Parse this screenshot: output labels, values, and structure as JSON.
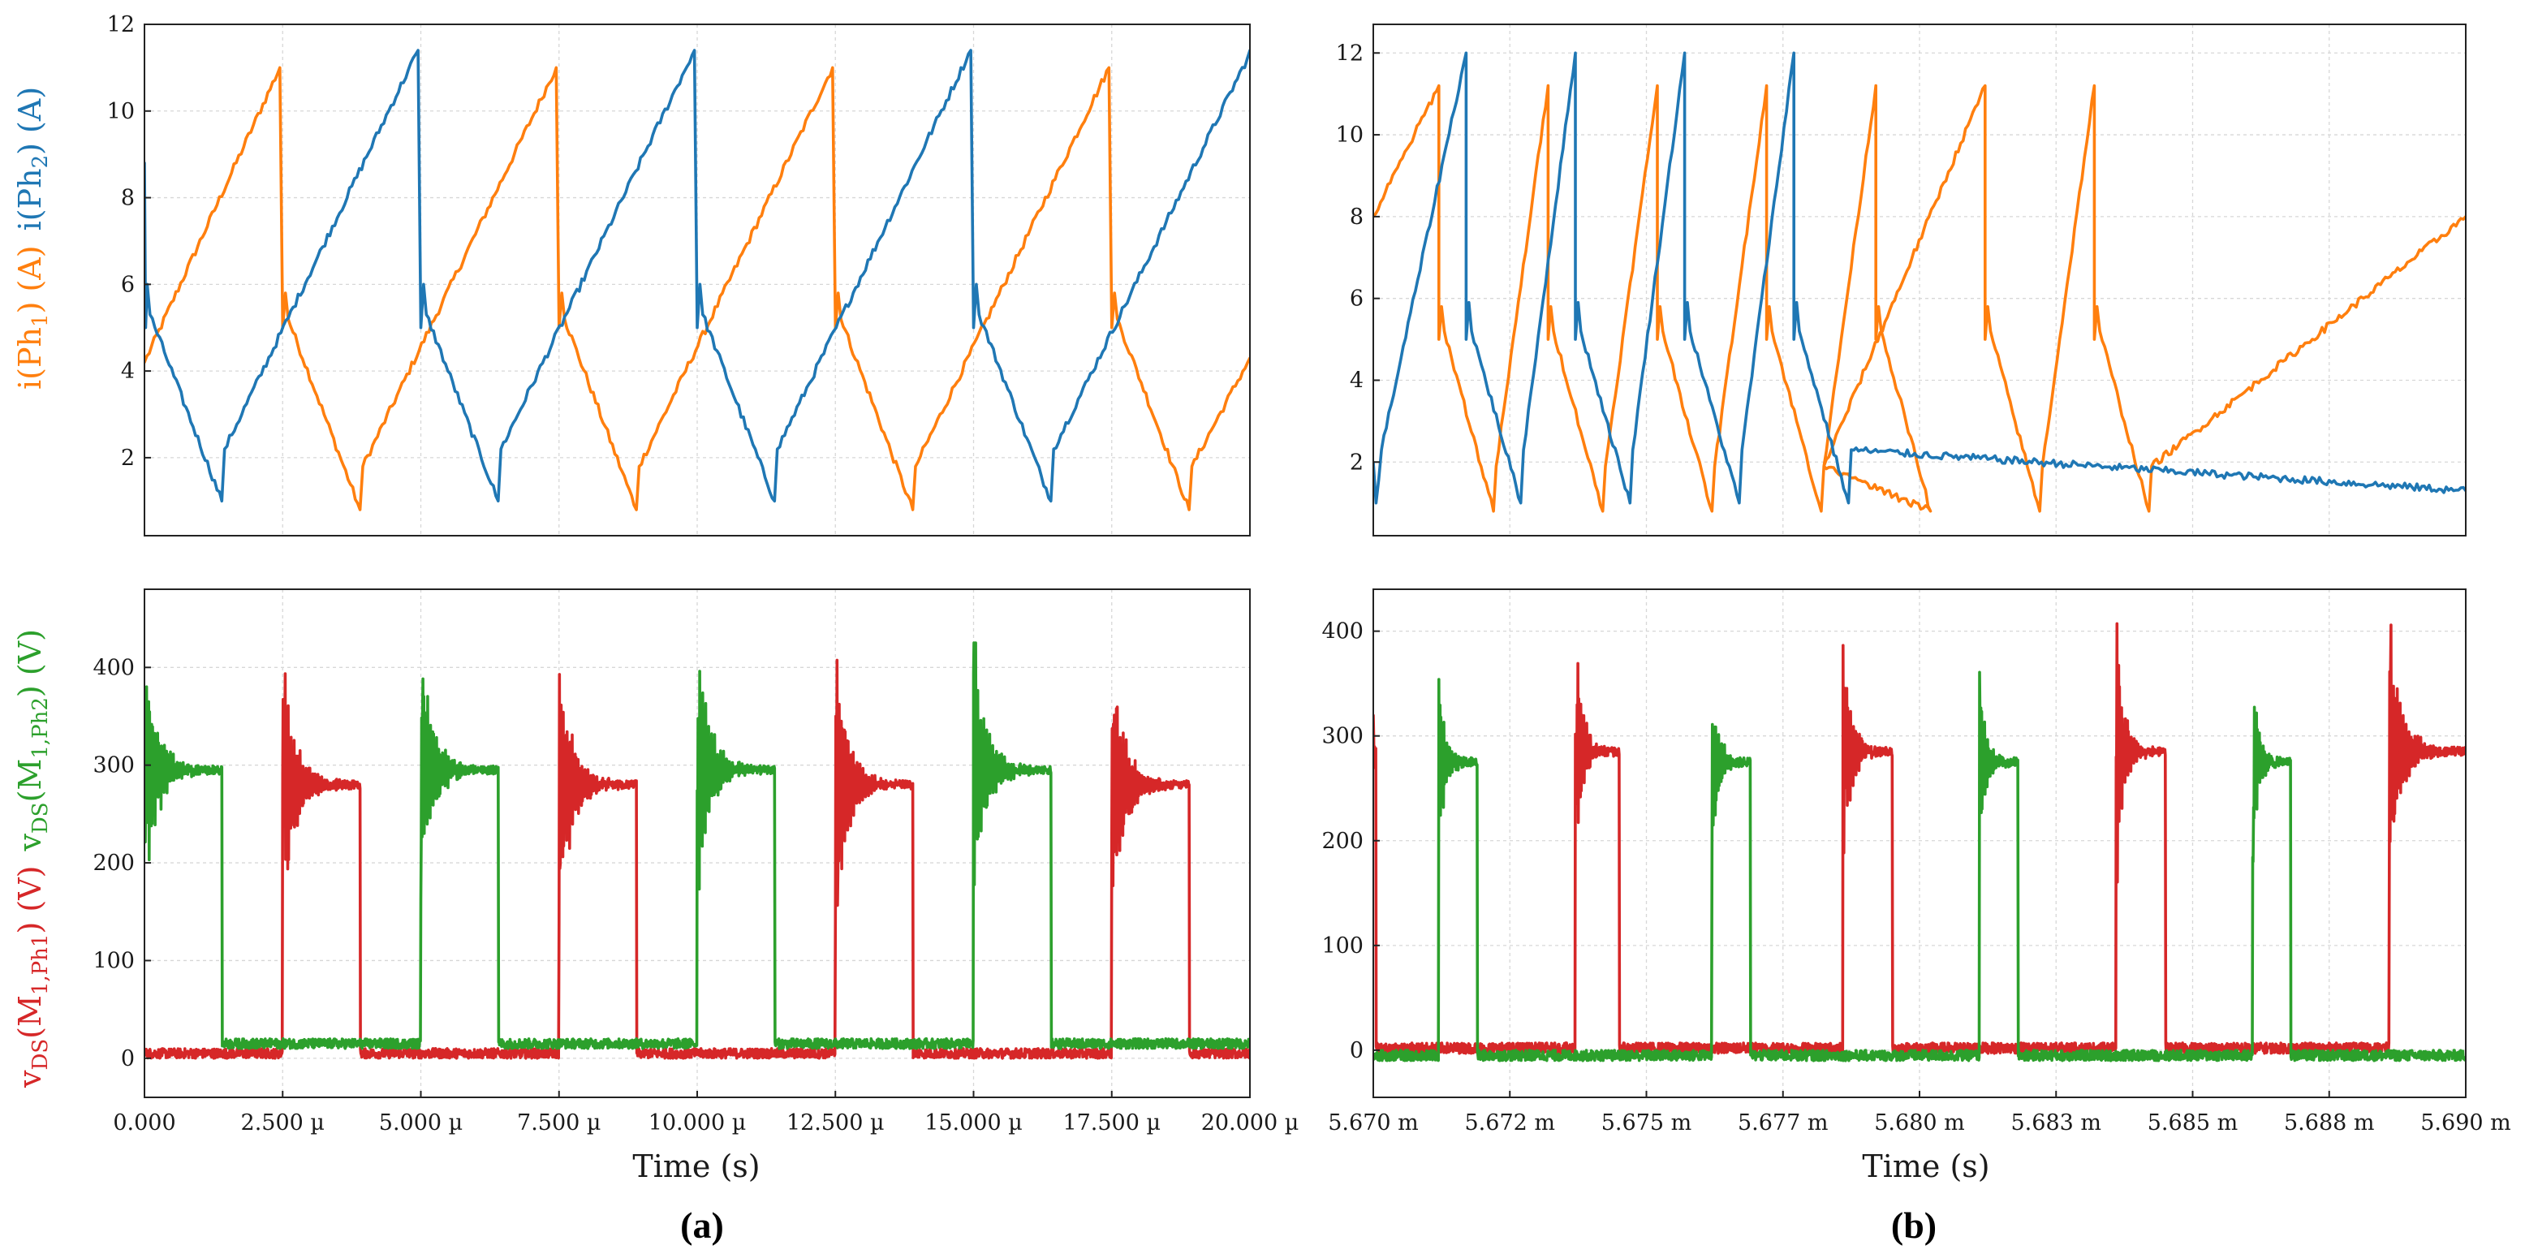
{
  "colors": {
    "orange": "#ff7f0e",
    "blue": "#1f77b4",
    "red": "#d62728",
    "green": "#2ca02c"
  },
  "labels": {
    "panel_a": "(a)",
    "panel_b": "(b)",
    "xlabel": "Time (s)",
    "ylabel_currents_ph1_pre": "i(Ph",
    "ylabel_currents_ph1_sub": "1",
    "ylabel_currents_ph1_post": ") (A)",
    "ylabel_currents_ph2_pre": "i(Ph",
    "ylabel_currents_ph2_sub": "2",
    "ylabel_currents_ph2_post": ") (A)",
    "ylabel_volt_red_pre": "v",
    "ylabel_volt_red_sub1": "DS",
    "ylabel_volt_red_mid": "(M",
    "ylabel_volt_red_sub2": "1,Ph1",
    "ylabel_volt_red_post": ") (V)",
    "ylabel_volt_green_pre": "v",
    "ylabel_volt_green_sub1": "DS",
    "ylabel_volt_green_mid": "(M",
    "ylabel_volt_green_sub2": "1,Ph2",
    "ylabel_volt_green_post": ") (V)"
  },
  "chart_data": [
    {
      "id": "a_current",
      "type": "line",
      "panel": "(a)",
      "xlim": [
        0,
        20
      ],
      "ylim": [
        0.2,
        12
      ],
      "yticks": [
        2,
        4,
        6,
        8,
        10,
        12
      ],
      "ytick_labels": [
        "2",
        "4",
        "6",
        "8",
        "10",
        "12"
      ],
      "xlabel": "",
      "ylabel": "i(Ph1) (A)  i(Ph2) (A)",
      "series": [
        {
          "name": "i(Ph1)",
          "color": "#ff7f0e",
          "x": [
            0,
            2.45,
            2.5,
            2.55,
            2.6,
            3.9,
            3.95,
            7.45,
            7.5,
            7.55,
            7.6,
            8.9,
            8.95,
            12.45,
            12.5,
            12.55,
            12.6,
            13.9,
            13.95,
            17.45,
            17.5,
            17.55,
            17.6,
            18.9,
            18.95,
            20
          ],
          "y": [
            4.2,
            11.0,
            5.0,
            5.8,
            5.2,
            0.8,
            1.8,
            11.0,
            5.0,
            5.8,
            5.2,
            0.8,
            1.8,
            11.0,
            5.0,
            5.8,
            5.2,
            0.8,
            1.8,
            11.0,
            5.0,
            5.8,
            5.2,
            0.8,
            1.8,
            4.3
          ]
        },
        {
          "name": "i(Ph2)",
          "color": "#1f77b4",
          "x": [
            0,
            0.02,
            0.05,
            0.1,
            1.4,
            1.45,
            4.95,
            5.0,
            5.05,
            5.1,
            6.4,
            6.45,
            9.95,
            10.0,
            10.05,
            10.1,
            11.4,
            11.45,
            14.95,
            15.0,
            15.05,
            15.1,
            16.4,
            16.45,
            19.95,
            20.0
          ],
          "y": [
            8.8,
            5.0,
            6.0,
            5.3,
            1.0,
            2.2,
            11.4,
            5.0,
            6.0,
            5.3,
            1.0,
            2.2,
            11.4,
            5.0,
            6.0,
            5.3,
            1.0,
            2.2,
            11.4,
            5.0,
            6.0,
            5.3,
            1.0,
            2.2,
            11.2,
            11.4
          ]
        }
      ]
    },
    {
      "id": "a_voltage",
      "type": "line",
      "panel": "(a)",
      "xlim": [
        0,
        20
      ],
      "ylim": [
        -40,
        480
      ],
      "yticks": [
        0,
        100,
        200,
        300,
        400
      ],
      "ytick_labels": [
        "0",
        "100",
        "200",
        "300",
        "400"
      ],
      "xticks": [
        0,
        2.5,
        5,
        7.5,
        10,
        12.5,
        15,
        17.5,
        20
      ],
      "xtick_labels": [
        "0.000",
        "2.500 µ",
        "5.000 µ",
        "7.500 µ",
        "10.000 µ",
        "12.500 µ",
        "15.000 µ",
        "17.500 µ",
        "20.000 µ"
      ],
      "xlabel": "Time (s)",
      "ylabel": "vDS(M1,Ph1) (V)  vDS(M1,Ph2) (V)",
      "series": [
        {
          "name": "vDS(M1,Ph1)",
          "color": "#d62728",
          "off_value": 5,
          "plateau": 280,
          "overshoot": 425,
          "on_intervals": [
            [
              2.5,
              3.9
            ],
            [
              7.5,
              8.9
            ],
            [
              12.5,
              13.9
            ],
            [
              17.5,
              18.9
            ]
          ]
        },
        {
          "name": "vDS(M1,Ph2)",
          "color": "#2ca02c",
          "off_value": 15,
          "plateau": 295,
          "overshoot": 430,
          "on_intervals": [
            [
              0.0,
              1.4
            ],
            [
              5.0,
              6.4
            ],
            [
              10.0,
              11.4
            ],
            [
              15.0,
              16.4
            ],
            [
              20.0,
              20.0
            ]
          ]
        }
      ]
    },
    {
      "id": "b_current",
      "type": "line",
      "panel": "(b)",
      "xlim": [
        5.67,
        5.69
      ],
      "ylim": [
        0.2,
        12.7
      ],
      "yticks": [
        2,
        4,
        6,
        8,
        10,
        12
      ],
      "ytick_labels": [
        "2",
        "4",
        "6",
        "8",
        "10",
        "12"
      ],
      "xlabel": "",
      "ylabel": "",
      "series": [
        {
          "name": "i(Ph1)",
          "color": "#ff7f0e",
          "x": [
            5.67,
            5.6712,
            5.6712,
            5.67125,
            5.6713,
            5.6722,
            5.67225,
            5.6732,
            5.6732,
            5.67325,
            5.6733,
            5.6742,
            5.67425,
            5.6752,
            5.6752,
            5.67525,
            5.6753,
            5.6762,
            5.67625,
            5.6772,
            5.6772,
            5.67725,
            5.6773,
            5.6782,
            5.67825,
            5.6792,
            5.6792,
            5.67925,
            5.6793,
            5.6802,
            5.67825,
            5.6812,
            5.6812,
            5.68125,
            5.6813,
            5.6822,
            5.68225,
            5.6832,
            5.6832,
            5.68325,
            5.6833,
            5.6842,
            5.68425,
            5.69
          ],
          "y": [
            8.0,
            11.2,
            5.0,
            5.8,
            5.2,
            0.8,
            1.9,
            11.2,
            5.0,
            5.8,
            5.2,
            0.8,
            1.9,
            11.2,
            5.0,
            5.8,
            5.2,
            0.8,
            1.9,
            11.2,
            5.0,
            5.8,
            5.2,
            0.8,
            1.9,
            11.2,
            5.0,
            5.8,
            5.2,
            0.8,
            1.9,
            11.2,
            5.0,
            5.8,
            5.2,
            0.8,
            1.9,
            11.2,
            5.0,
            5.8,
            5.2,
            0.8,
            1.9,
            8.0
          ]
        },
        {
          "name": "i(Ph2)",
          "color": "#1f77b4",
          "x": [
            5.67,
            5.67005,
            5.67015,
            5.6717,
            5.6717,
            5.67175,
            5.6718,
            5.6727,
            5.67275,
            5.6737,
            5.6737,
            5.67375,
            5.6738,
            5.6747,
            5.67475,
            5.6757,
            5.6757,
            5.67575,
            5.6758,
            5.6767,
            5.67675,
            5.6777,
            5.6777,
            5.67775,
            5.6778,
            5.6787,
            5.67875,
            5.69
          ],
          "y": [
            2.0,
            1.0,
            2.3,
            12.0,
            5.0,
            5.9,
            5.2,
            1.0,
            2.3,
            12.0,
            5.0,
            5.9,
            5.2,
            1.0,
            2.3,
            12.0,
            5.0,
            5.9,
            5.2,
            1.0,
            2.3,
            12.0,
            5.0,
            5.9,
            5.2,
            1.0,
            2.3,
            1.3
          ]
        }
      ]
    },
    {
      "id": "b_voltage",
      "type": "line",
      "panel": "(b)",
      "xlim": [
        5.67,
        5.69
      ],
      "ylim": [
        -45,
        440
      ],
      "yticks": [
        0,
        100,
        200,
        300,
        400
      ],
      "ytick_labels": [
        "0",
        "100",
        "200",
        "300",
        "400"
      ],
      "xticks": [
        5.67,
        5.6725,
        5.675,
        5.6775,
        5.68,
        5.6825,
        5.685,
        5.6875,
        5.69
      ],
      "xtick_labels": [
        "5.670 m",
        "5.672 m",
        "5.675 m",
        "5.677 m",
        "5.680 m",
        "5.683 m",
        "5.685 m",
        "5.688 m",
        "5.690 m"
      ],
      "xlabel": "Time (s)",
      "ylabel": "",
      "series": [
        {
          "name": "vDS(M1,Ph1)",
          "color": "#d62728",
          "off_value": 2,
          "plateau": 285,
          "overshoot": 410,
          "on_intervals": [
            [
              5.67,
              5.67005
            ],
            [
              5.6737,
              5.6745
            ],
            [
              5.6786,
              5.6795
            ],
            [
              5.6836,
              5.6845
            ],
            [
              5.6886,
              5.69
            ]
          ]
        },
        {
          "name": "vDS(M1,Ph2)",
          "color": "#2ca02c",
          "off_value": -5,
          "plateau": 275,
          "overshoot": 370,
          "on_intervals": [
            [
              5.6712,
              5.6719
            ],
            [
              5.6762,
              5.6769
            ],
            [
              5.6811,
              5.6818
            ],
            [
              5.6861,
              5.6868
            ]
          ]
        }
      ]
    }
  ]
}
